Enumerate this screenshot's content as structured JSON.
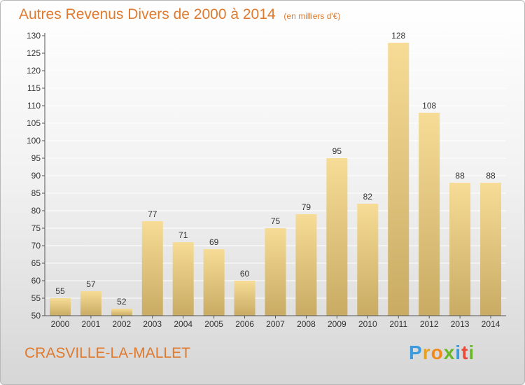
{
  "header": {
    "title": "Autres Revenus Divers de 2000 à 2014",
    "subtitle": "(en milliers d'€)"
  },
  "footer": {
    "place": "CRASVILLE-LA-MALLET",
    "logo_text": "Proxiti"
  },
  "logo_colors": [
    "#3a9be0",
    "#e8a020",
    "#f08a1a",
    "#6ab82a",
    "#3a9be0",
    "#e84a3a",
    "#6ab82a"
  ],
  "colors": {
    "title": "#e07a2e",
    "bar_light": "#f6dc96",
    "bar_dark": "#c9ab63",
    "axis": "#555555",
    "grid": "#ffffff"
  },
  "chart_data": {
    "type": "bar",
    "title": "Autres Revenus Divers de 2000 à 2014",
    "subtitle": "(en milliers d'€)",
    "categories": [
      "2000",
      "2001",
      "2002",
      "2003",
      "2004",
      "2005",
      "2006",
      "2007",
      "2008",
      "2009",
      "2010",
      "2011",
      "2012",
      "2013",
      "2014"
    ],
    "values": [
      55,
      57,
      52,
      77,
      71,
      69,
      60,
      75,
      79,
      95,
      82,
      128,
      108,
      88,
      88
    ],
    "ylim": [
      50,
      130
    ],
    "ytick_step": 5,
    "grid": true,
    "xlabel": "",
    "ylabel": ""
  }
}
